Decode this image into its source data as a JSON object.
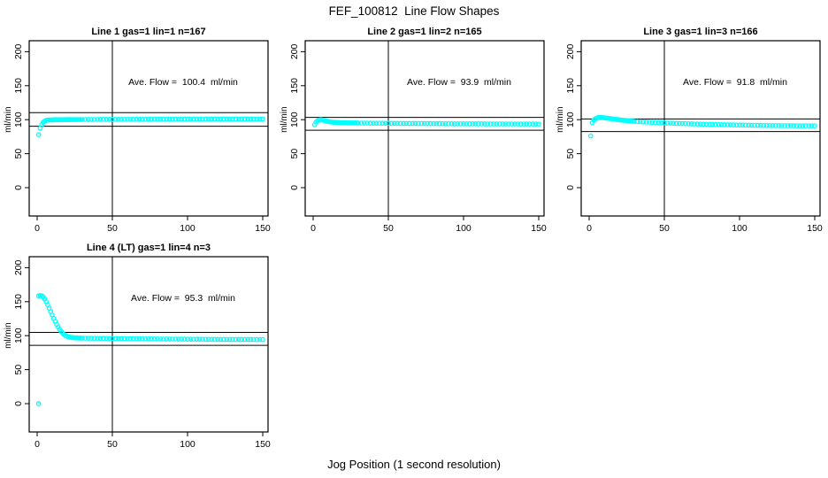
{
  "page": {
    "title": "FEF_100812  Line Flow Shapes",
    "xlabel": "Jog Position (1 second resolution)"
  },
  "colors": {
    "points": "#00FFFF",
    "axis": "#000000",
    "background": "#FFFFFF"
  },
  "axes": {
    "x_ticks": [
      0,
      50,
      100,
      150
    ],
    "y_ticks": [
      0,
      50,
      100,
      150,
      200
    ],
    "ylabel": "ml/min",
    "xlim": [
      -5,
      153.5
    ],
    "ylim": [
      -41,
      216
    ],
    "grid": false
  },
  "chart_data": [
    {
      "type": "scatter",
      "title": "Line 1 gas=1 lin=1 n=167",
      "n": 167,
      "ave_flow": 100.4,
      "ave_flow_label": "Ave. Flow =  100.4  ml/min",
      "hline_upper": 110.4,
      "hline_lower": 90.4,
      "vline_x": 50,
      "points": [
        [
          1,
          78
        ],
        [
          2,
          87.5
        ],
        [
          3,
          92.5
        ],
        [
          4,
          96
        ],
        [
          5,
          98
        ],
        [
          6,
          99
        ],
        [
          7,
          99.4
        ],
        [
          8,
          99.6
        ],
        [
          9,
          99.7
        ],
        [
          10,
          99.8
        ],
        [
          11,
          99.8
        ],
        [
          12,
          99.9
        ],
        [
          13,
          99.9
        ],
        [
          14,
          99.9
        ],
        [
          15,
          100
        ],
        [
          16,
          100
        ],
        [
          17,
          100
        ],
        [
          18,
          100
        ],
        [
          19,
          100.1
        ],
        [
          20,
          100.1
        ],
        [
          21,
          100.1
        ],
        [
          22,
          100.1
        ],
        [
          23,
          100.1
        ],
        [
          24,
          100.2
        ],
        [
          25,
          100.2
        ],
        [
          26,
          100.2
        ],
        [
          27,
          100.2
        ],
        [
          28,
          100.2
        ],
        [
          29,
          100.2
        ],
        [
          30,
          100.2
        ],
        [
          32,
          100.3
        ],
        [
          34,
          100.3
        ],
        [
          36,
          100.3
        ],
        [
          38,
          100.3
        ],
        [
          40,
          100.3
        ],
        [
          42,
          100.4
        ],
        [
          44,
          100.4
        ],
        [
          46,
          100.4
        ],
        [
          48,
          100.4
        ],
        [
          50,
          100.4
        ],
        [
          52,
          100.5
        ],
        [
          54,
          100.5
        ],
        [
          56,
          100.5
        ],
        [
          58,
          100.5
        ],
        [
          60,
          100.5
        ],
        [
          62,
          100.5
        ],
        [
          64,
          100.6
        ],
        [
          66,
          100.6
        ],
        [
          68,
          100.6
        ],
        [
          70,
          100.6
        ],
        [
          72,
          100.6
        ],
        [
          74,
          100.6
        ],
        [
          76,
          100.6
        ],
        [
          78,
          100.7
        ],
        [
          80,
          100.7
        ],
        [
          82,
          100.7
        ],
        [
          84,
          100.7
        ],
        [
          86,
          100.7
        ],
        [
          88,
          100.7
        ],
        [
          90,
          100.7
        ],
        [
          92,
          100.7
        ],
        [
          94,
          100.8
        ],
        [
          96,
          100.8
        ],
        [
          98,
          100.8
        ],
        [
          100,
          100.8
        ],
        [
          102,
          100.8
        ],
        [
          104,
          100.8
        ],
        [
          106,
          100.8
        ],
        [
          108,
          100.8
        ],
        [
          110,
          100.8
        ],
        [
          112,
          100.9
        ],
        [
          114,
          100.9
        ],
        [
          116,
          100.9
        ],
        [
          118,
          100.9
        ],
        [
          120,
          100.9
        ],
        [
          122,
          100.9
        ],
        [
          124,
          100.9
        ],
        [
          126,
          100.9
        ],
        [
          128,
          100.9
        ],
        [
          130,
          100.9
        ],
        [
          132,
          101
        ],
        [
          134,
          101
        ],
        [
          136,
          101
        ],
        [
          138,
          101
        ],
        [
          140,
          101
        ],
        [
          142,
          101
        ],
        [
          144,
          101
        ],
        [
          146,
          101
        ],
        [
          148,
          101
        ],
        [
          150,
          101
        ]
      ]
    },
    {
      "type": "scatter",
      "title": "Line 2 gas=1 lin=2 n=165",
      "n": 165,
      "ave_flow": 93.9,
      "ave_flow_label": "Ave. Flow =  93.9  ml/min",
      "hline_upper": 103.3,
      "hline_lower": 84.5,
      "vline_x": 50,
      "points": [
        [
          1,
          92.5
        ],
        [
          2,
          96.5
        ],
        [
          3,
          98.5
        ],
        [
          4,
          99.5
        ],
        [
          5,
          99.8
        ],
        [
          6,
          99.5
        ],
        [
          7,
          99
        ],
        [
          8,
          98.4
        ],
        [
          9,
          97.8
        ],
        [
          10,
          97.3
        ],
        [
          11,
          96.9
        ],
        [
          12,
          96.6
        ],
        [
          13,
          96.3
        ],
        [
          14,
          96.1
        ],
        [
          15,
          96
        ],
        [
          16,
          95.9
        ],
        [
          17,
          95.8
        ],
        [
          18,
          95.7
        ],
        [
          19,
          95.6
        ],
        [
          20,
          95.6
        ],
        [
          21,
          95.5
        ],
        [
          22,
          95.5
        ],
        [
          23,
          95.4
        ],
        [
          24,
          95.4
        ],
        [
          25,
          95.3
        ],
        [
          26,
          95.3
        ],
        [
          27,
          95.2
        ],
        [
          28,
          95.2
        ],
        [
          29,
          95.1
        ],
        [
          30,
          95.1
        ],
        [
          32,
          95
        ],
        [
          34,
          95
        ],
        [
          36,
          94.9
        ],
        [
          38,
          94.9
        ],
        [
          40,
          94.8
        ],
        [
          42,
          94.8
        ],
        [
          44,
          94.8
        ],
        [
          46,
          94.7
        ],
        [
          48,
          94.7
        ],
        [
          50,
          94.7
        ],
        [
          52,
          94.6
        ],
        [
          54,
          94.6
        ],
        [
          56,
          94.6
        ],
        [
          58,
          94.5
        ],
        [
          60,
          94.5
        ],
        [
          62,
          94.5
        ],
        [
          64,
          94.4
        ],
        [
          66,
          94.4
        ],
        [
          68,
          94.4
        ],
        [
          70,
          94.3
        ],
        [
          72,
          94.3
        ],
        [
          74,
          94.3
        ],
        [
          76,
          94.3
        ],
        [
          78,
          94.2
        ],
        [
          80,
          94.2
        ],
        [
          82,
          94.2
        ],
        [
          84,
          94.2
        ],
        [
          86,
          94.1
        ],
        [
          88,
          94.1
        ],
        [
          90,
          94.1
        ],
        [
          92,
          94.1
        ],
        [
          94,
          94
        ],
        [
          96,
          94
        ],
        [
          98,
          94
        ],
        [
          100,
          94
        ],
        [
          102,
          94
        ],
        [
          104,
          93.9
        ],
        [
          106,
          93.9
        ],
        [
          108,
          93.9
        ],
        [
          110,
          93.9
        ],
        [
          112,
          93.9
        ],
        [
          114,
          93.8
        ],
        [
          116,
          93.8
        ],
        [
          118,
          93.8
        ],
        [
          120,
          93.8
        ],
        [
          122,
          93.8
        ],
        [
          124,
          93.8
        ],
        [
          126,
          93.7
        ],
        [
          128,
          93.7
        ],
        [
          130,
          93.7
        ],
        [
          132,
          93.7
        ],
        [
          134,
          93.7
        ],
        [
          136,
          93.7
        ],
        [
          138,
          93.6
        ],
        [
          140,
          93.6
        ],
        [
          142,
          93.6
        ],
        [
          144,
          93.6
        ],
        [
          146,
          93.6
        ],
        [
          148,
          93.6
        ],
        [
          150,
          93.5
        ]
      ]
    },
    {
      "type": "scatter",
      "title": "Line 3 gas=1 lin=3 n=166",
      "n": 166,
      "ave_flow": 91.8,
      "ave_flow_label": "Ave. Flow =  91.8  ml/min",
      "hline_upper": 101.0,
      "hline_lower": 82.6,
      "vline_x": 50,
      "points": [
        [
          1,
          76
        ],
        [
          2,
          95.5
        ],
        [
          3,
          99
        ],
        [
          4,
          101
        ],
        [
          5,
          102.3
        ],
        [
          6,
          103
        ],
        [
          7,
          103.2
        ],
        [
          8,
          103.2
        ],
        [
          9,
          103
        ],
        [
          10,
          102.8
        ],
        [
          11,
          102.5
        ],
        [
          12,
          102.2
        ],
        [
          13,
          101.9
        ],
        [
          14,
          101.6
        ],
        [
          15,
          101.3
        ],
        [
          16,
          101
        ],
        [
          17,
          100.7
        ],
        [
          18,
          100.4
        ],
        [
          19,
          100.1
        ],
        [
          20,
          99.8
        ],
        [
          21,
          99.5
        ],
        [
          22,
          99.3
        ],
        [
          23,
          99
        ],
        [
          24,
          98.8
        ],
        [
          25,
          98.5
        ],
        [
          26,
          98.3
        ],
        [
          27,
          98.1
        ],
        [
          28,
          97.9
        ],
        [
          29,
          97.7
        ],
        [
          30,
          97.5
        ],
        [
          32,
          97.2
        ],
        [
          34,
          97
        ],
        [
          36,
          96.7
        ],
        [
          38,
          96.5
        ],
        [
          40,
          96.3
        ],
        [
          42,
          96.1
        ],
        [
          44,
          95.9
        ],
        [
          46,
          95.7
        ],
        [
          48,
          95.5
        ],
        [
          50,
          95.3
        ],
        [
          52,
          95.1
        ],
        [
          54,
          95
        ],
        [
          56,
          94.8
        ],
        [
          58,
          94.6
        ],
        [
          60,
          94.5
        ],
        [
          62,
          94.3
        ],
        [
          64,
          94.2
        ],
        [
          66,
          94
        ],
        [
          68,
          93.9
        ],
        [
          70,
          93.7
        ],
        [
          72,
          93.6
        ],
        [
          74,
          93.5
        ],
        [
          76,
          93.3
        ],
        [
          78,
          93.2
        ],
        [
          80,
          93.1
        ],
        [
          82,
          93
        ],
        [
          84,
          92.9
        ],
        [
          86,
          92.8
        ],
        [
          88,
          92.7
        ],
        [
          90,
          92.6
        ],
        [
          92,
          92.5
        ],
        [
          94,
          92.4
        ],
        [
          96,
          92.3
        ],
        [
          98,
          92.2
        ],
        [
          100,
          92.1
        ],
        [
          102,
          92
        ],
        [
          104,
          91.9
        ],
        [
          106,
          91.9
        ],
        [
          108,
          91.8
        ],
        [
          110,
          91.7
        ],
        [
          112,
          91.7
        ],
        [
          114,
          91.6
        ],
        [
          116,
          91.5
        ],
        [
          118,
          91.5
        ],
        [
          120,
          91.4
        ],
        [
          122,
          91.4
        ],
        [
          124,
          91.3
        ],
        [
          126,
          91.3
        ],
        [
          128,
          91.2
        ],
        [
          130,
          91.2
        ],
        [
          132,
          91.1
        ],
        [
          134,
          91.1
        ],
        [
          136,
          91.1
        ],
        [
          138,
          91
        ],
        [
          140,
          91
        ],
        [
          142,
          91
        ],
        [
          144,
          91
        ],
        [
          146,
          91
        ],
        [
          148,
          91
        ],
        [
          150,
          91
        ]
      ]
    },
    {
      "type": "scatter",
      "title": "Line 4 (LT) gas=1 lin=4 n=3",
      "n": 3,
      "ave_flow": 95.3,
      "ave_flow_label": "Ave. Flow =  95.3  ml/min",
      "hline_upper": 104.8,
      "hline_lower": 85.8,
      "vline_x": 50,
      "points": [
        [
          1,
          0
        ],
        [
          1,
          158.5
        ],
        [
          2,
          159
        ],
        [
          3,
          158.5
        ],
        [
          4,
          157
        ],
        [
          5,
          154
        ],
        [
          6,
          150
        ],
        [
          7,
          145.5
        ],
        [
          8,
          140.5
        ],
        [
          9,
          135.5
        ],
        [
          10,
          130.5
        ],
        [
          11,
          125.5
        ],
        [
          12,
          121
        ],
        [
          13,
          116.5
        ],
        [
          14,
          112.5
        ],
        [
          15,
          109
        ],
        [
          16,
          106
        ],
        [
          17,
          103.5
        ],
        [
          18,
          101.5
        ],
        [
          19,
          100
        ],
        [
          20,
          99
        ],
        [
          21,
          98.2
        ],
        [
          22,
          97.7
        ],
        [
          23,
          97.3
        ],
        [
          24,
          97
        ],
        [
          25,
          96.8
        ],
        [
          26,
          96.7
        ],
        [
          27,
          96.6
        ],
        [
          28,
          96.5
        ],
        [
          29,
          96.4
        ],
        [
          30,
          96.4
        ],
        [
          32,
          96.3
        ],
        [
          34,
          96.2
        ],
        [
          36,
          96.2
        ],
        [
          38,
          96.1
        ],
        [
          40,
          96.1
        ],
        [
          42,
          96
        ],
        [
          44,
          96
        ],
        [
          46,
          95.9
        ],
        [
          48,
          95.9
        ],
        [
          50,
          95.8
        ],
        [
          52,
          95.8
        ],
        [
          54,
          95.7
        ],
        [
          56,
          95.7
        ],
        [
          58,
          95.6
        ],
        [
          60,
          95.6
        ],
        [
          62,
          95.5
        ],
        [
          64,
          95.5
        ],
        [
          66,
          95.5
        ],
        [
          68,
          95.4
        ],
        [
          70,
          95.4
        ],
        [
          72,
          95.3
        ],
        [
          74,
          95.3
        ],
        [
          76,
          95.3
        ],
        [
          78,
          95.2
        ],
        [
          80,
          95.2
        ],
        [
          82,
          95.1
        ],
        [
          84,
          95.1
        ],
        [
          86,
          95.1
        ],
        [
          88,
          95
        ],
        [
          90,
          95
        ],
        [
          92,
          95
        ],
        [
          94,
          94.9
        ],
        [
          96,
          94.9
        ],
        [
          98,
          94.9
        ],
        [
          100,
          94.8
        ],
        [
          102,
          94.8
        ],
        [
          104,
          94.8
        ],
        [
          106,
          94.7
        ],
        [
          108,
          94.7
        ],
        [
          110,
          94.7
        ],
        [
          112,
          94.6
        ],
        [
          114,
          94.6
        ],
        [
          116,
          94.6
        ],
        [
          118,
          94.6
        ],
        [
          120,
          94.5
        ],
        [
          122,
          94.5
        ],
        [
          124,
          94.5
        ],
        [
          126,
          94.5
        ],
        [
          128,
          94.5
        ],
        [
          130,
          94.5
        ],
        [
          132,
          94.4
        ],
        [
          134,
          94.4
        ],
        [
          136,
          94.4
        ],
        [
          138,
          94.4
        ],
        [
          140,
          94.4
        ],
        [
          142,
          94.4
        ],
        [
          144,
          94.3
        ],
        [
          146,
          94.3
        ],
        [
          148,
          94.3
        ],
        [
          150,
          94.3
        ]
      ]
    }
  ]
}
